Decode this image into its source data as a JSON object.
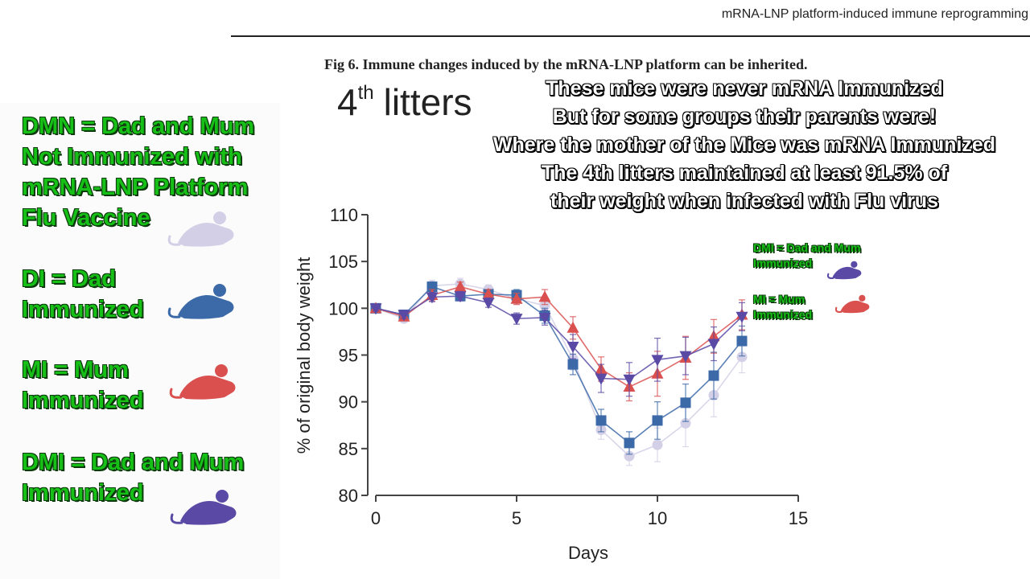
{
  "header": {
    "title": "mRNA-LNP platform-induced immune reprogramming"
  },
  "figure": {
    "caption": "Fig 6.  Immune changes induced by the mRNA-LNP platform can be inherited."
  },
  "panel_title": {
    "number": "4",
    "superscript": "th",
    "word": "litters"
  },
  "overlay_lines": [
    "These mice were never mRNA Immunized",
    "But for some groups their parents were!",
    "Where the mother of the Mice was mRNA Immunized",
    "The 4th litters maintained at least 91.5% of",
    "their weight when infected with Flu virus"
  ],
  "legend_left": {
    "dmn": [
      "DMN = Dad and Mum",
      "Not Immunized with",
      "mRNA-LNP Platform",
      "Flu Vaccine"
    ],
    "di": [
      "DI =   Dad",
      "Immunized"
    ],
    "mi": [
      "MI =   Mum",
      "Immunized"
    ],
    "dmi": [
      "DMI =  Dad and Mum",
      "Immunized"
    ]
  },
  "legend_right": {
    "dmi": [
      "DMI =  Dad and Mum",
      "Immunized"
    ],
    "mi": [
      "MI =   Mum",
      "Immunized"
    ]
  },
  "colors": {
    "dmn": "#d3cfe6",
    "di": "#3c6aa8",
    "mi": "#d9504f",
    "dmi": "#5a4aa6",
    "label_green": "#16c016"
  },
  "chart_data": {
    "type": "line",
    "xlabel": "Days",
    "ylabel": "% of original body weight",
    "xlim": [
      0,
      15
    ],
    "ylim": [
      80,
      110
    ],
    "xticks": [
      0,
      5,
      10,
      15
    ],
    "yticks": [
      80,
      85,
      90,
      95,
      100,
      105,
      110
    ],
    "grid": false,
    "x": [
      0,
      1,
      2,
      3,
      4,
      5,
      6,
      7,
      8,
      9,
      10,
      11,
      12,
      13
    ],
    "series": [
      {
        "name": "DMN",
        "marker": "circle",
        "color": "#d3cfe6",
        "values": [
          100,
          98.9,
          102.4,
          102.6,
          102.0,
          101.0,
          100.3,
          94.6,
          87.0,
          84.2,
          85.4,
          87.7,
          90.7,
          94.8
        ],
        "errors": [
          0.3,
          0.4,
          0.6,
          0.6,
          0.5,
          0.6,
          0.8,
          1.2,
          1.0,
          1.0,
          1.8,
          2.5,
          2.3,
          1.7
        ]
      },
      {
        "name": "DI",
        "marker": "square",
        "color": "#3c6aa8",
        "values": [
          100,
          99.3,
          102.3,
          101.3,
          101.5,
          101.4,
          99.2,
          94.0,
          88.0,
          85.6,
          88.0,
          89.9,
          92.8,
          96.5
        ],
        "errors": [
          0.3,
          0.4,
          0.5,
          0.5,
          0.5,
          0.6,
          0.8,
          1.1,
          1.2,
          1.2,
          2.0,
          2.0,
          2.5,
          1.6
        ]
      },
      {
        "name": "MI",
        "marker": "triangle-up",
        "color": "#d9504f",
        "values": [
          100,
          99.1,
          101.4,
          102.3,
          101.5,
          101.0,
          101.2,
          97.9,
          93.5,
          91.6,
          93.0,
          94.7,
          97.0,
          99.3
        ],
        "errors": [
          0.3,
          0.4,
          0.6,
          0.5,
          0.5,
          0.6,
          0.8,
          1.2,
          1.3,
          1.5,
          2.4,
          2.3,
          1.8,
          1.6
        ]
      },
      {
        "name": "DMI",
        "marker": "triangle-down",
        "color": "#5a4aa6",
        "values": [
          100,
          99.3,
          101.2,
          101.3,
          100.6,
          98.9,
          99.0,
          95.9,
          92.5,
          92.4,
          94.5,
          94.9,
          96.2,
          99.1
        ],
        "errors": [
          0.3,
          0.4,
          0.5,
          0.5,
          0.5,
          0.6,
          0.8,
          1.3,
          1.5,
          1.8,
          2.3,
          2.0,
          1.8,
          1.5
        ]
      }
    ]
  }
}
